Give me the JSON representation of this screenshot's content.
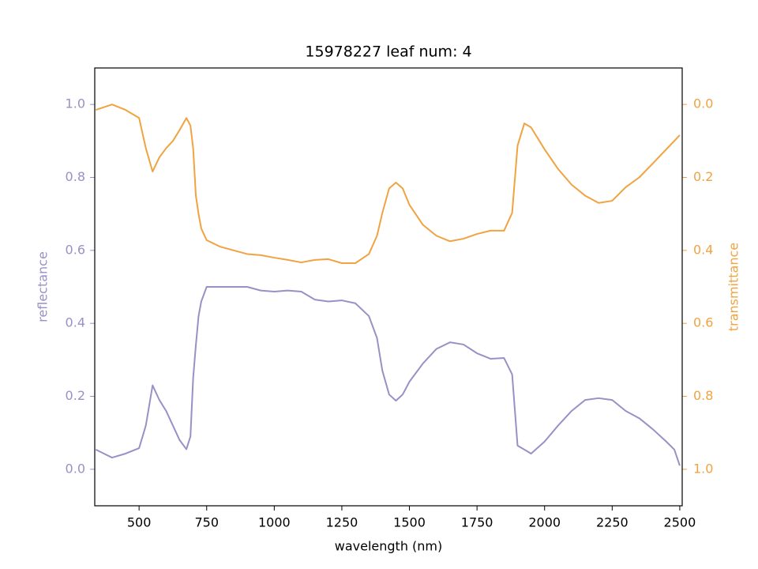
{
  "chart_data": {
    "type": "line",
    "title": "15978227 leaf num: 4",
    "xlabel": "wavelength (nm)",
    "ylabel": "reflectance",
    "y2label": "transmittance",
    "x": [
      340,
      400,
      450,
      500,
      525,
      550,
      575,
      600,
      625,
      650,
      675,
      690,
      700,
      710,
      720,
      730,
      750,
      800,
      900,
      950,
      1000,
      1050,
      1100,
      1150,
      1200,
      1250,
      1300,
      1350,
      1380,
      1400,
      1425,
      1450,
      1475,
      1500,
      1550,
      1600,
      1650,
      1700,
      1750,
      1800,
      1850,
      1880,
      1900,
      1925,
      1950,
      2000,
      2050,
      2100,
      2150,
      2200,
      2250,
      2300,
      2350,
      2400,
      2450,
      2480,
      2500
    ],
    "series": [
      {
        "name": "reflectance",
        "color": "#9990c6",
        "axis": "y",
        "values": [
          0.054,
          0.032,
          0.043,
          0.058,
          0.12,
          0.23,
          0.19,
          0.16,
          0.12,
          0.08,
          0.055,
          0.09,
          0.25,
          0.34,
          0.42,
          0.46,
          0.5,
          0.5,
          0.5,
          0.49,
          0.487,
          0.49,
          0.487,
          0.465,
          0.46,
          0.463,
          0.455,
          0.42,
          0.36,
          0.27,
          0.205,
          0.188,
          0.205,
          0.24,
          0.29,
          0.33,
          0.348,
          0.342,
          0.318,
          0.303,
          0.305,
          0.26,
          0.065,
          0.054,
          0.043,
          0.076,
          0.12,
          0.16,
          0.19,
          0.195,
          0.19,
          0.16,
          0.14,
          0.11,
          0.076,
          0.054,
          0.01
        ]
      },
      {
        "name": "transmittance",
        "color": "#f0a340",
        "axis": "y2",
        "values": [
          0.015,
          0,
          0.015,
          0.037,
          0.12,
          0.184,
          0.145,
          0.12,
          0.1,
          0.07,
          0.037,
          0.058,
          0.12,
          0.25,
          0.3,
          0.34,
          0.372,
          0.39,
          0.41,
          0.413,
          0.42,
          0.426,
          0.433,
          0.426,
          0.424,
          0.435,
          0.435,
          0.41,
          0.36,
          0.297,
          0.23,
          0.214,
          0.23,
          0.275,
          0.33,
          0.36,
          0.375,
          0.368,
          0.355,
          0.346,
          0.346,
          0.297,
          0.113,
          0.052,
          0.063,
          0.123,
          0.177,
          0.22,
          0.25,
          0.27,
          0.264,
          0.227,
          0.2,
          0.162,
          0.123,
          0.1,
          0.084
        ]
      }
    ],
    "xlim": [
      336,
      2509
    ],
    "xticks": [
      500,
      750,
      1000,
      1250,
      1500,
      1750,
      2000,
      2250,
      2500
    ],
    "ylim": [
      -0.1,
      1.1
    ],
    "yticks": [
      {
        "value": 0,
        "label": "0.0"
      },
      0.2,
      0.4,
      0.6,
      0.8,
      {
        "value": 1,
        "label": "1.0"
      }
    ],
    "y2lim": [
      -0.1,
      1.1
    ],
    "y2_inverted": true,
    "y2ticks": [
      {
        "value": 0,
        "label": "0.0"
      },
      0.2,
      0.4,
      0.6,
      0.8,
      {
        "value": 1,
        "label": "1.0"
      }
    ],
    "grid": false
  }
}
